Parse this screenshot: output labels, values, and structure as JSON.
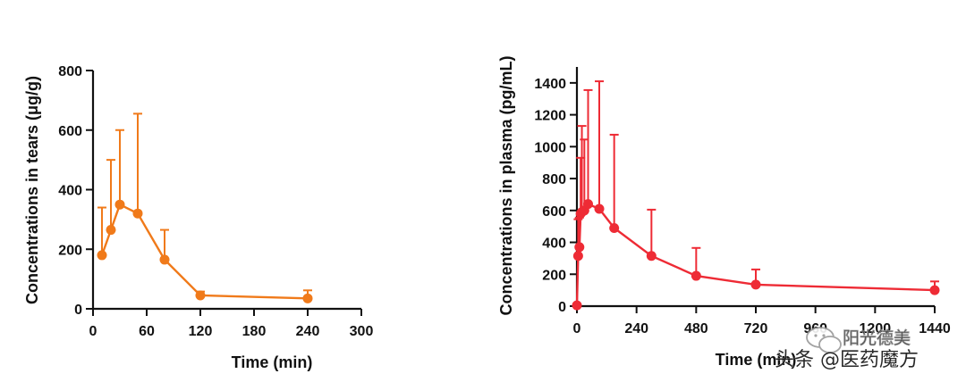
{
  "chart_data": [
    {
      "type": "line",
      "title": "",
      "xlabel": "Time (min)",
      "ylabel": "Concentrations in tears (μg/g)",
      "xlim": [
        0,
        300
      ],
      "ylim": [
        0,
        800
      ],
      "xticks": [
        0,
        60,
        120,
        180,
        240,
        300
      ],
      "yticks": [
        0,
        200,
        400,
        600,
        800
      ],
      "grid": false,
      "color": "#f07a1a",
      "series": [
        {
          "name": "tears",
          "x": [
            10,
            20,
            30,
            50,
            80,
            120,
            240
          ],
          "values": [
            180,
            265,
            350,
            320,
            165,
            45,
            35
          ],
          "error_upper": [
            340,
            500,
            600,
            655,
            265,
            58,
            62
          ]
        }
      ]
    },
    {
      "type": "line",
      "title": "",
      "xlabel": "Time (min)",
      "ylabel": "Concentrations in plasma (pg/mL)",
      "xlim": [
        0,
        1440
      ],
      "ylim": [
        0,
        1500
      ],
      "xticks": [
        0,
        240,
        480,
        720,
        960,
        1200,
        1440
      ],
      "yticks": [
        0,
        200,
        400,
        600,
        800,
        1000,
        1200,
        1400
      ],
      "grid": false,
      "color": "#ee2b35",
      "series": [
        {
          "name": "plasma",
          "x": [
            0,
            5,
            10,
            15,
            20,
            30,
            45,
            90,
            150,
            300,
            480,
            720,
            1440
          ],
          "values": [
            5,
            315,
            370,
            580,
            590,
            600,
            640,
            610,
            490,
            315,
            190,
            135,
            100
          ],
          "error_upper": [
            null,
            545,
            555,
            930,
            1130,
            1045,
            1355,
            1410,
            1075,
            605,
            365,
            230,
            155
          ]
        }
      ]
    }
  ],
  "watermark": {
    "line1": "阳光德美",
    "line2": "头条 @医药魔方"
  }
}
